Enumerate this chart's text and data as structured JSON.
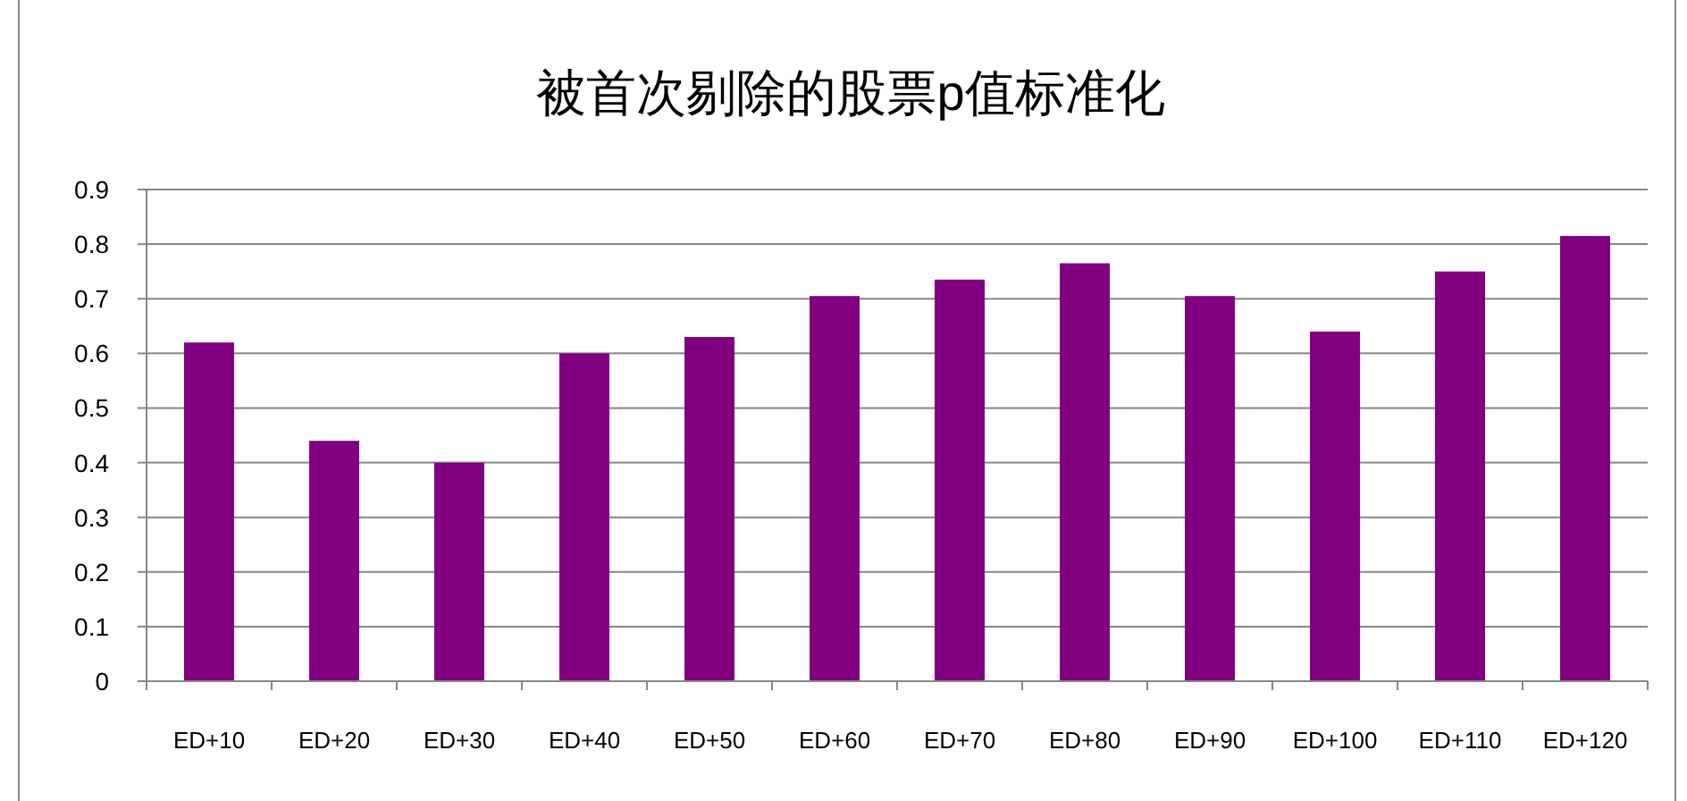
{
  "chart_data": {
    "type": "bar",
    "title": "被首次剔除的股票p值标准化",
    "categories": [
      "ED+10",
      "ED+20",
      "ED+30",
      "ED+40",
      "ED+50",
      "ED+60",
      "ED+70",
      "ED+80",
      "ED+90",
      "ED+100",
      "ED+110",
      "ED+120"
    ],
    "values": [
      0.62,
      0.44,
      0.4,
      0.6,
      0.63,
      0.705,
      0.735,
      0.765,
      0.705,
      0.64,
      0.75,
      0.815
    ],
    "color": "#800080",
    "ylim": [
      0,
      0.9
    ],
    "yticks": [
      0,
      0.1,
      0.2,
      0.3,
      0.4,
      0.5,
      0.6,
      0.7,
      0.8,
      0.9
    ],
    "grid": "y"
  }
}
